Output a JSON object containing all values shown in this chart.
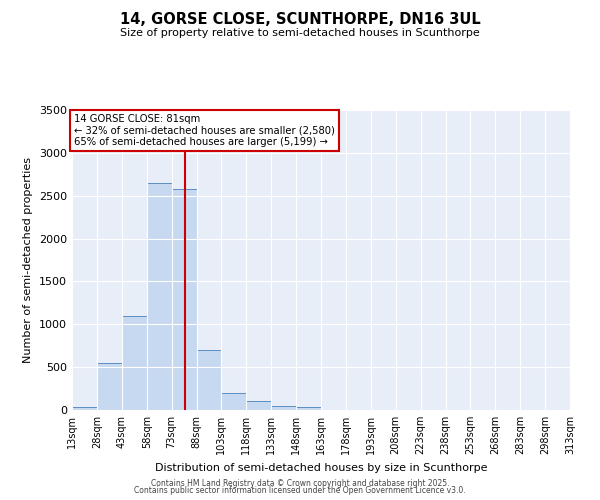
{
  "title1": "14, GORSE CLOSE, SCUNTHORPE, DN16 3UL",
  "title2": "Size of property relative to semi-detached houses in Scunthorpe",
  "xlabel": "Distribution of semi-detached houses by size in Scunthorpe",
  "ylabel": "Number of semi-detached properties",
  "bin_edges": [
    13,
    28,
    43,
    58,
    73,
    88,
    103,
    118,
    133,
    148,
    163,
    178,
    193,
    208,
    223,
    238,
    253,
    268,
    283,
    298,
    313
  ],
  "bar_heights": [
    40,
    550,
    1100,
    2650,
    2580,
    700,
    200,
    100,
    50,
    30,
    5,
    0,
    0,
    0,
    0,
    0,
    0,
    0,
    0,
    0
  ],
  "bar_color": "#c7d9f0",
  "bar_edge_color": "#5b8ec4",
  "property_size": 81,
  "vline_color": "#cc0000",
  "annotation_text": "14 GORSE CLOSE: 81sqm\n← 32% of semi-detached houses are smaller (2,580)\n65% of semi-detached houses are larger (5,199) →",
  "annotation_box_color": "#ffffff",
  "annotation_box_edge": "#cc0000",
  "ylim": [
    0,
    3500
  ],
  "yticks": [
    0,
    500,
    1000,
    1500,
    2000,
    2500,
    3000,
    3500
  ],
  "bg_color": "#e8eef8",
  "footer1": "Contains HM Land Registry data © Crown copyright and database right 2025.",
  "footer2": "Contains public sector information licensed under the Open Government Licence v3.0."
}
